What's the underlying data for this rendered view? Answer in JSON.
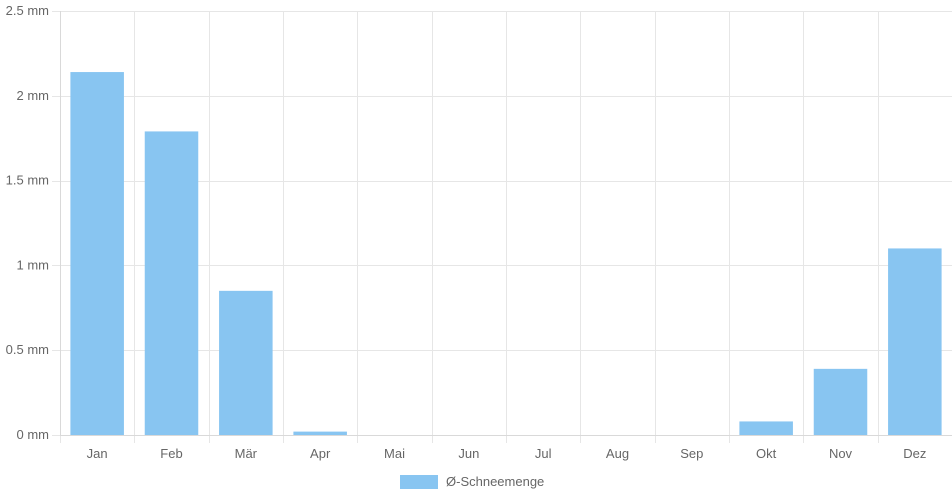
{
  "chart_data": {
    "type": "bar",
    "categories": [
      "Jan",
      "Feb",
      "Mär",
      "Apr",
      "Mai",
      "Jun",
      "Jul",
      "Aug",
      "Sep",
      "Okt",
      "Nov",
      "Dez"
    ],
    "series": [
      {
        "name": "Ø-Schneemenge",
        "values": [
          2.14,
          1.79,
          0.85,
          0.02,
          0,
          0,
          0,
          0,
          0,
          0.08,
          0.39,
          1.1
        ],
        "color": "#88c5f1"
      }
    ],
    "ylim": [
      0,
      2.5
    ],
    "yticks": [
      0,
      0.5,
      1,
      1.5,
      2,
      2.5
    ],
    "ytick_labels": [
      "0 mm",
      "0.5 mm",
      "1 mm",
      "1.5 mm",
      "2 mm",
      "2.5 mm"
    ],
    "xlabel": "",
    "ylabel": "",
    "grid": true,
    "legend": {
      "position": "bottom",
      "label": "Ø-Schneemenge"
    }
  }
}
